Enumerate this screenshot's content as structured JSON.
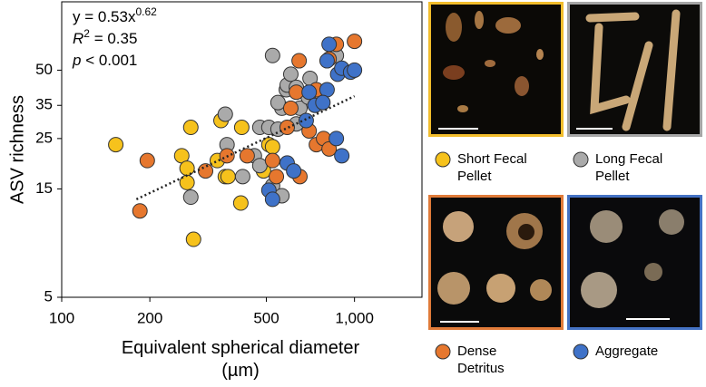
{
  "chart_data": {
    "type": "scatter",
    "x_label": "Equivalent spherical diameter (µm)",
    "y_label": "ASV richness",
    "annotation": {
      "equation": [
        "y = 0.53x",
        "0.62"
      ],
      "r2": [
        "R",
        "2",
        " = 0.35"
      ],
      "p": [
        "p",
        " < 0.001"
      ]
    },
    "x_scale": "log",
    "y_scale": "log",
    "xlim": [
      100,
      1700
    ],
    "ylim": [
      5,
      100
    ],
    "xticks": [
      100,
      200,
      500,
      {
        "value": 1000,
        "label": "1,000"
      }
    ],
    "yticks": [
      5,
      15,
      25,
      35,
      50
    ],
    "trend_line": {
      "x": [
        180,
        1000
      ],
      "y": [
        13.5,
        38.4
      ]
    },
    "series": [
      {
        "name": "Short Fecal Pellet",
        "color": "#f6c21c",
        "x": [
          153,
          257,
          276,
          268,
          268,
          282,
          340,
          350,
          362,
          370,
          412,
          409,
          510,
          525,
          489
        ],
        "values": [
          23.5,
          21,
          28,
          18.5,
          16,
          9,
          20,
          30,
          17,
          17,
          28,
          13,
          23.5,
          23,
          18
        ]
      },
      {
        "name": "Long Fecal Pellet",
        "color": "#aaaaaa",
        "x": [
          276,
          362,
          367,
          415,
          455,
          475,
          510,
          525,
          548,
          565,
          585,
          589,
          606,
          633,
          651,
          695,
          548,
          525,
          565,
          475,
          867,
          633,
          705
        ],
        "values": [
          13.8,
          32,
          23.5,
          17,
          21,
          28,
          28,
          58,
          27.5,
          34,
          41,
          43,
          48,
          42,
          34,
          38,
          36,
          15.5,
          14,
          19,
          58,
          29,
          46
        ]
      },
      {
        "name": "Dense Detritus",
        "color": "#e6772e",
        "x": [
          196,
          185,
          310,
          430,
          367,
          525,
          541,
          589,
          606,
          633,
          651,
          700,
          741,
          784,
          819,
          741,
          819,
          867,
          1000,
          647
        ],
        "values": [
          20,
          12,
          18,
          21,
          21,
          20,
          17,
          28,
          34,
          40,
          17,
          27,
          23.5,
          25,
          22.5,
          41,
          56,
          65,
          67,
          55
        ]
      },
      {
        "name": "Aggregate",
        "color": "#3f72c8",
        "x": [
          510,
          525,
          589,
          620,
          684,
          700,
          733,
          806,
          806,
          819,
          876,
          905,
          970,
          1000,
          867,
          905,
          780
        ],
        "values": [
          14.8,
          13.5,
          19.5,
          18,
          30,
          40,
          35,
          41,
          55,
          65,
          48,
          51,
          49,
          50,
          25,
          21,
          36
        ]
      }
    ]
  }
}
